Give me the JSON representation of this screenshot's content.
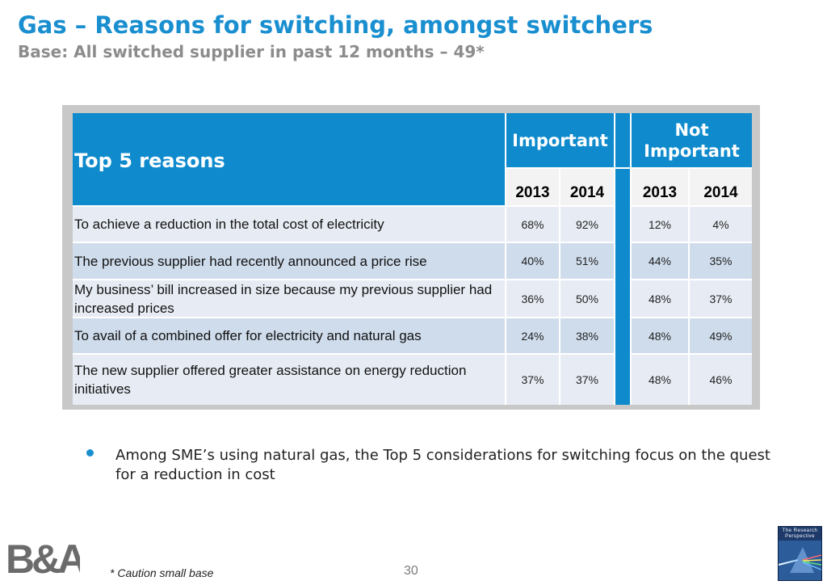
{
  "header": {
    "title": "Gas – Reasons for switching, amongst switchers",
    "subtitle": "Base: All switched supplier in past 12 months – 49*"
  },
  "table": {
    "row_header": "Top 5 reasons",
    "groups": [
      "Important",
      "Not Important"
    ],
    "years": [
      "2013",
      "2014",
      "2013",
      "2014"
    ],
    "rows": [
      {
        "label": "To achieve a reduction in the total cost of electricity",
        "values": [
          "68%",
          "92%",
          "12%",
          "4%"
        ]
      },
      {
        "label": "The previous supplier had recently announced a price rise",
        "values": [
          "40%",
          "51%",
          "44%",
          "35%"
        ]
      },
      {
        "label": "My business’ bill increased in size because my previous supplier had increased prices",
        "values": [
          "36%",
          "50%",
          "48%",
          "37%"
        ]
      },
      {
        "label": "To avail of a combined offer for electricity and natural gas",
        "values": [
          "24%",
          "38%",
          "48%",
          "49%"
        ]
      },
      {
        "label": "The new supplier offered  greater assistance on energy reduction initiatives",
        "values": [
          "37%",
          "37%",
          "48%",
          "46%"
        ]
      }
    ]
  },
  "bullets": [
    "Among SME’s using natural gas, the Top 5 considerations for switching focus on the quest for a reduction in cost"
  ],
  "footer": {
    "footnote_marker": "*",
    "footnote_text": "Caution small base",
    "page_number": "30",
    "logo_text": "B&A",
    "logo_right_text": "The Research Perspective"
  },
  "colors": {
    "title_blue": "#1a8fd0",
    "header_blue": "#0f8bcd",
    "row_light": "#e7ecf4",
    "row_dark": "#cfdcec"
  }
}
